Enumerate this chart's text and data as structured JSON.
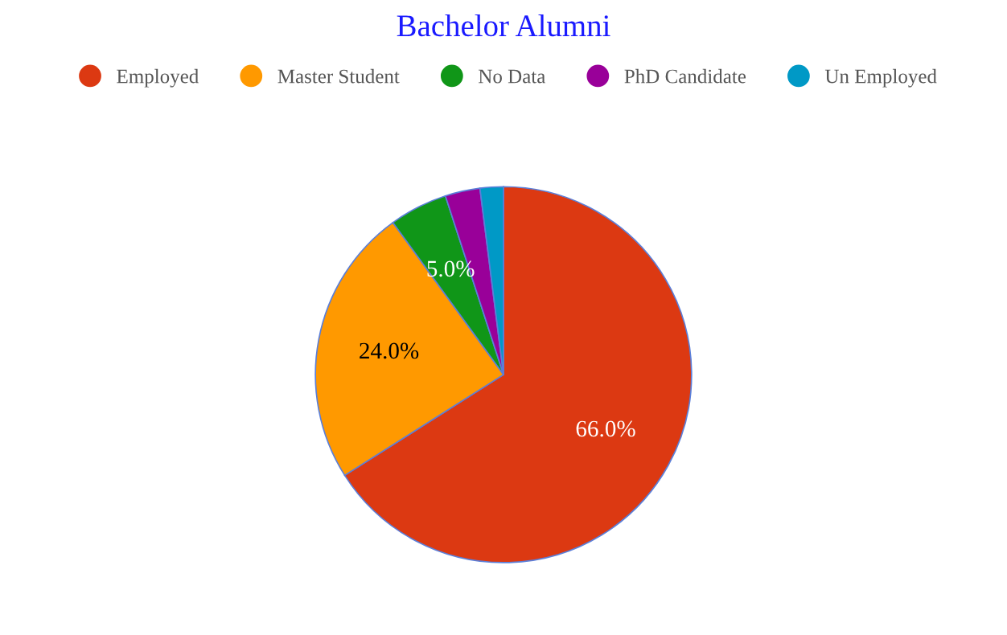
{
  "chart_data": {
    "type": "pie",
    "title": "Bachelor Alumni",
    "categories": [
      "Employed",
      "Master Student",
      "No Data",
      "PhD Candidate",
      "Un Employed"
    ],
    "values": [
      66,
      24,
      5,
      3,
      2
    ],
    "value_labels": [
      "66.0%",
      "24.0%",
      "5.0%",
      null,
      null
    ],
    "colors": [
      "#dc3912",
      "#ff9900",
      "#109618",
      "#990099",
      "#0099c6"
    ],
    "legend": "top"
  }
}
